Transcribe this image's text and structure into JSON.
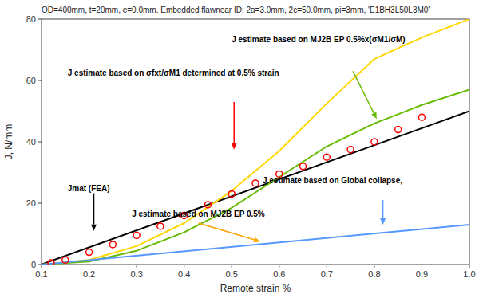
{
  "chart_data": {
    "type": "line",
    "title": "OD=400mm, t=20mm, e=0.0mm. Embedded flawnear ID: 2a=3.0mm, 2c=50.0mm, pi=3mm, 'E1BH3L50L3M0'",
    "x_label": "Remote strain %",
    "y_label": "J, N/mm",
    "xlim": [
      0.1,
      1.0
    ],
    "ylim": [
      0,
      80
    ],
    "xticks": [
      0.1,
      0.2,
      0.3,
      0.4,
      0.5,
      0.6,
      0.7,
      0.8,
      0.9,
      {
        "value": 1.0,
        "label": "1.0"
      }
    ],
    "yticks": [
      0,
      20,
      40,
      60,
      80
    ],
    "grid": false,
    "series": [
      {
        "type": "line",
        "color": "#000000",
        "x": [
          0.1,
          1.0
        ],
        "values": [
          0.05,
          50
        ]
      },
      {
        "type": "line",
        "color": "#FFD700",
        "x": [
          0.1,
          0.2,
          0.3,
          0.4,
          0.5,
          0.6,
          0.7,
          0.8,
          0.9,
          1.0
        ],
        "values": [
          0.0,
          1.5,
          6.0,
          13.5,
          24.0,
          37.0,
          52.5,
          67.0,
          74.0,
          80.0
        ]
      },
      {
        "type": "line",
        "color": "#66BB00",
        "x": [
          0.1,
          0.2,
          0.3,
          0.4,
          0.5,
          0.6,
          0.7,
          0.8,
          0.9,
          1.0
        ],
        "values": [
          0.0,
          1.0,
          4.5,
          10.5,
          18.5,
          28.5,
          38.5,
          46.0,
          52.0,
          57.0
        ]
      },
      {
        "type": "line",
        "color": "#5599FF",
        "x": [
          0.1,
          1.0
        ],
        "values": [
          0.0,
          13.0
        ]
      },
      {
        "type": "scatter",
        "marker": "circle",
        "color": "#FF0000",
        "x": [
          0.12,
          0.15,
          0.2,
          0.25,
          0.3,
          0.35,
          0.4,
          0.45,
          0.5,
          0.55,
          0.6,
          0.65,
          0.7,
          0.75,
          0.8,
          0.85,
          0.9
        ],
        "values": [
          0.5,
          1.5,
          4.0,
          6.5,
          9.5,
          12.5,
          16.0,
          19.5,
          23.0,
          26.5,
          29.5,
          32.0,
          35.0,
          37.5,
          40.0,
          44.0,
          48.0
        ]
      }
    ],
    "annotations": [
      {
        "text": "Jmat (FEA)",
        "x": 0.155,
        "y": 24,
        "arrow": {
          "to": [
            0.21,
            11.0
          ],
          "color": "#000000"
        }
      },
      {
        "text": "J estimate based on MJ2B EP 0.5%x(σM1/σM)",
        "x": 0.5,
        "y": 72.5,
        "arrow": {
          "from": [
            0.755,
            63
          ],
          "to": [
            0.805,
            47.5
          ],
          "color": "#66BB00"
        }
      },
      {
        "text": "J estimate based on σfxt/σM1 determined at 0.5% strain",
        "x": 0.155,
        "y": 61.5,
        "arrow": {
          "from": [
            0.505,
            53.0
          ],
          "to": [
            0.505,
            37.5
          ],
          "color": "#FF0000"
        }
      },
      {
        "text": "J estimate based on Global collapse,",
        "x": 0.565,
        "y": 26.5,
        "arrow": {
          "from": [
            0.818,
            21.0
          ],
          "to": [
            0.818,
            13.0
          ],
          "color": "#5599FF"
        }
      },
      {
        "text": "J estimate based on MJ2B EP 0.5%",
        "x": 0.29,
        "y": 15.5,
        "arrow": {
          "from": [
            0.43,
            13.5
          ],
          "to": [
            0.56,
            7.5
          ],
          "color": "#FFA500"
        }
      }
    ]
  }
}
